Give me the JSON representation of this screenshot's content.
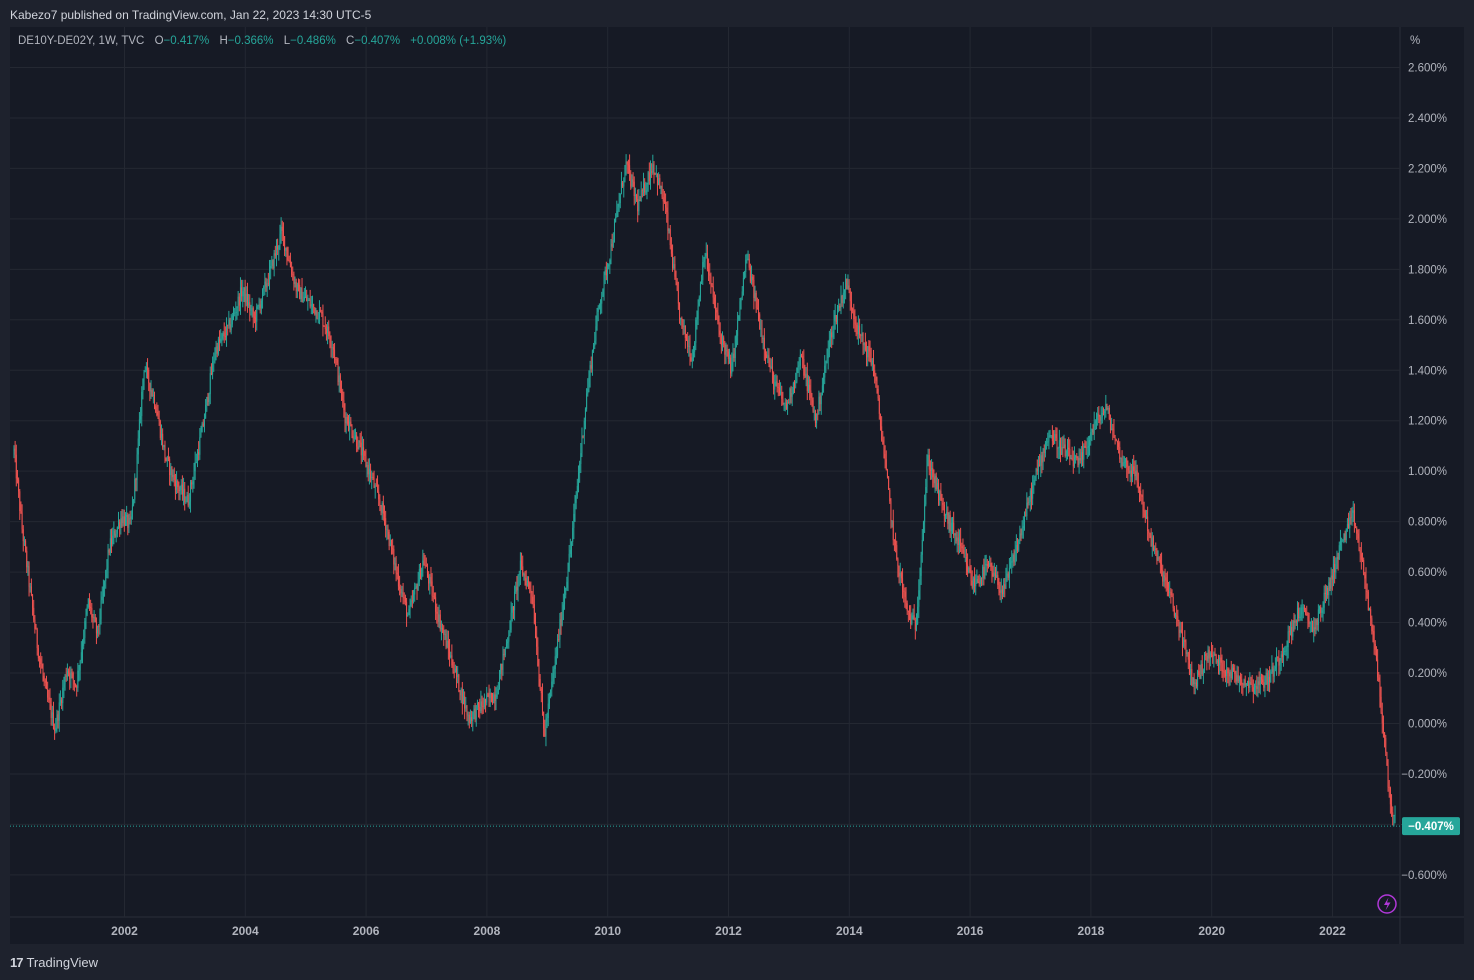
{
  "header": {
    "publish_text": "Kabezo7 published on TradingView.com, Jan 22, 2023 14:30 UTC-5"
  },
  "legend": {
    "symbol": "DE10Y-DE02Y, 1W, TVC",
    "open_label": "O",
    "open_value": "−0.417%",
    "high_label": "H",
    "high_value": "−0.366%",
    "low_label": "L",
    "low_value": "−0.486%",
    "close_label": "C",
    "close_value": "−0.407%",
    "change_value": "+0.008% (+1.93%)"
  },
  "footer": {
    "brand": "TradingView",
    "logo_text": "17"
  },
  "colors": {
    "background": "#161a25",
    "outer": "#1e222d",
    "grid": "#242832",
    "up": "#26a69a",
    "down": "#ef5350",
    "price_badge": "#26a69a",
    "text": "#b2b5be",
    "flash_icon": "#b038d8"
  },
  "icons": {
    "flash": "lightning-icon",
    "logo": "tradingview-logo-icon"
  },
  "chart_data": {
    "type": "candlestick",
    "symbol": "DE10Y-DE02Y",
    "interval": "1W",
    "unit_label": "%",
    "y_ticks": [
      "2.600%",
      "2.400%",
      "2.200%",
      "2.000%",
      "1.800%",
      "1.600%",
      "1.400%",
      "1.200%",
      "1.000%",
      "0.800%",
      "0.600%",
      "0.400%",
      "0.200%",
      "0.000%",
      "−0.200%",
      "−0.400%",
      "−0.600%"
    ],
    "y_tick_values": [
      2.6,
      2.4,
      2.2,
      2.0,
      1.8,
      1.6,
      1.4,
      1.2,
      1.0,
      0.8,
      0.6,
      0.4,
      0.2,
      0.0,
      -0.2,
      -0.4,
      -0.6
    ],
    "x_ticks": [
      "2002",
      "2004",
      "2006",
      "2008",
      "2010",
      "2012",
      "2014",
      "2016",
      "2018",
      "2020",
      "2022"
    ],
    "x_tick_values": [
      2002,
      2004,
      2006,
      2008,
      2010,
      2012,
      2014,
      2016,
      2018,
      2020,
      2022
    ],
    "x_range": [
      2000.15,
      2023.1
    ],
    "y_range": [
      -0.77,
      2.82
    ],
    "last_price": -0.407,
    "last_price_label": "−0.407%",
    "grid": true,
    "series_path": [
      [
        2000.17,
        1.08
      ],
      [
        2000.3,
        0.78
      ],
      [
        2000.55,
        0.32
      ],
      [
        2000.7,
        0.12
      ],
      [
        2000.85,
        -0.02
      ],
      [
        2001.05,
        0.22
      ],
      [
        2001.2,
        0.15
      ],
      [
        2001.4,
        0.48
      ],
      [
        2001.55,
        0.35
      ],
      [
        2001.75,
        0.7
      ],
      [
        2001.95,
        0.82
      ],
      [
        2002.1,
        0.78
      ],
      [
        2002.2,
        1.02
      ],
      [
        2002.32,
        1.42
      ],
      [
        2002.5,
        1.28
      ],
      [
        2002.68,
        1.05
      ],
      [
        2002.85,
        0.95
      ],
      [
        2003.05,
        0.88
      ],
      [
        2003.3,
        1.18
      ],
      [
        2003.5,
        1.48
      ],
      [
        2003.75,
        1.58
      ],
      [
        2003.95,
        1.72
      ],
      [
        2004.15,
        1.6
      ],
      [
        2004.4,
        1.78
      ],
      [
        2004.6,
        1.95
      ],
      [
        2004.85,
        1.72
      ],
      [
        2005.0,
        1.68
      ],
      [
        2005.25,
        1.62
      ],
      [
        2005.45,
        1.5
      ],
      [
        2005.65,
        1.22
      ],
      [
        2005.85,
        1.12
      ],
      [
        2006.05,
        1.0
      ],
      [
        2006.3,
        0.82
      ],
      [
        2006.5,
        0.6
      ],
      [
        2006.7,
        0.42
      ],
      [
        2006.95,
        0.65
      ],
      [
        2007.2,
        0.42
      ],
      [
        2007.45,
        0.22
      ],
      [
        2007.7,
        0.02
      ],
      [
        2007.95,
        0.08
      ],
      [
        2008.15,
        0.12
      ],
      [
        2008.35,
        0.35
      ],
      [
        2008.55,
        0.62
      ],
      [
        2008.75,
        0.52
      ],
      [
        2008.95,
        -0.05
      ],
      [
        2009.15,
        0.28
      ],
      [
        2009.4,
        0.72
      ],
      [
        2009.65,
        1.3
      ],
      [
        2009.85,
        1.65
      ],
      [
        2010.05,
        1.88
      ],
      [
        2010.3,
        2.22
      ],
      [
        2010.5,
        2.05
      ],
      [
        2010.75,
        2.22
      ],
      [
        2010.95,
        2.05
      ],
      [
        2011.2,
        1.6
      ],
      [
        2011.4,
        1.45
      ],
      [
        2011.6,
        1.88
      ],
      [
        2011.85,
        1.55
      ],
      [
        2012.05,
        1.4
      ],
      [
        2012.3,
        1.85
      ],
      [
        2012.55,
        1.55
      ],
      [
        2012.75,
        1.35
      ],
      [
        2012.95,
        1.25
      ],
      [
        2013.2,
        1.45
      ],
      [
        2013.45,
        1.2
      ],
      [
        2013.7,
        1.55
      ],
      [
        2013.95,
        1.75
      ],
      [
        2014.15,
        1.55
      ],
      [
        2014.4,
        1.42
      ],
      [
        2014.55,
        1.12
      ],
      [
        2014.75,
        0.7
      ],
      [
        2014.95,
        0.45
      ],
      [
        2015.1,
        0.38
      ],
      [
        2015.3,
        1.05
      ],
      [
        2015.55,
        0.85
      ],
      [
        2015.8,
        0.72
      ],
      [
        2016.05,
        0.55
      ],
      [
        2016.3,
        0.62
      ],
      [
        2016.55,
        0.52
      ],
      [
        2016.8,
        0.72
      ],
      [
        2017.05,
        0.95
      ],
      [
        2017.3,
        1.15
      ],
      [
        2017.55,
        1.08
      ],
      [
        2017.8,
        1.02
      ],
      [
        2018.05,
        1.18
      ],
      [
        2018.25,
        1.25
      ],
      [
        2018.5,
        1.05
      ],
      [
        2018.75,
        0.98
      ],
      [
        2019.0,
        0.72
      ],
      [
        2019.25,
        0.55
      ],
      [
        2019.5,
        0.35
      ],
      [
        2019.7,
        0.15
      ],
      [
        2019.95,
        0.28
      ],
      [
        2020.2,
        0.22
      ],
      [
        2020.45,
        0.18
      ],
      [
        2020.7,
        0.15
      ],
      [
        2020.95,
        0.18
      ],
      [
        2021.2,
        0.3
      ],
      [
        2021.45,
        0.45
      ],
      [
        2021.7,
        0.38
      ],
      [
        2021.95,
        0.55
      ],
      [
        2022.15,
        0.72
      ],
      [
        2022.35,
        0.82
      ],
      [
        2022.55,
        0.55
      ],
      [
        2022.75,
        0.2
      ],
      [
        2022.95,
        -0.3
      ],
      [
        2023.05,
        -0.407
      ]
    ]
  }
}
